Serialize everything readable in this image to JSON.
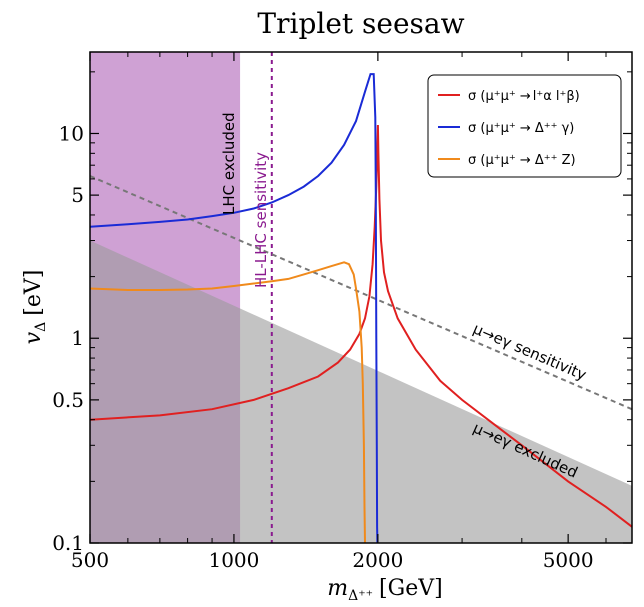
{
  "chart_data": {
    "type": "line",
    "title": "Triplet seesaw",
    "xlabel": "m",
    "xlabel_sub": "Δ⁺⁺",
    "xlabel_unit": "[GeV]",
    "ylabel": "v",
    "ylabel_sub": "Δ",
    "ylabel_unit": "[eV]",
    "xscale": "log",
    "yscale": "log",
    "xlim": [
      500,
      6800
    ],
    "ylim": [
      0.1,
      25
    ],
    "xticks": [
      500,
      1000,
      2000,
      5000
    ],
    "xtick_labels": [
      "500",
      "1000",
      "2000",
      "5000"
    ],
    "yticks": [
      0.1,
      0.5,
      1,
      5,
      10
    ],
    "ytick_labels": [
      "0.1",
      "0.5",
      "1",
      "5",
      "10"
    ],
    "legend_position": "top-right",
    "series": [
      {
        "name": "σ (μ⁺μ⁺ → l⁺α l⁺β)",
        "legend_text": "σ (μ⁺μ⁺ → ",
        "legend_sub_text": "l⁺α l⁺β)",
        "color": "#e02020",
        "x": [
          500,
          700,
          900,
          1100,
          1300,
          1500,
          1650,
          1750,
          1830,
          1880,
          1920,
          1950,
          1970,
          1985,
          1995,
          2000,
          2005,
          2015,
          2030,
          2060,
          2100,
          2200,
          2400,
          2700,
          3000,
          3500,
          4000,
          5000,
          6000,
          6800
        ],
        "y": [
          0.4,
          0.42,
          0.45,
          0.5,
          0.57,
          0.65,
          0.76,
          0.88,
          1.05,
          1.25,
          1.6,
          2.3,
          3.5,
          5.5,
          8.5,
          11,
          8.0,
          4.8,
          3.0,
          2.1,
          1.7,
          1.25,
          0.88,
          0.62,
          0.5,
          0.38,
          0.3,
          0.2,
          0.15,
          0.12
        ]
      },
      {
        "name": "σ (μ⁺μ⁺ → Δ⁺⁺ γ)",
        "legend_text": "σ (μ⁺μ⁺ → Δ⁺⁺ γ)",
        "color": "#1a2bd6",
        "x": [
          500,
          600,
          700,
          800,
          900,
          1000,
          1100,
          1200,
          1300,
          1400,
          1500,
          1600,
          1700,
          1800,
          1880,
          1930,
          1960,
          1975,
          1980,
          1985,
          1990,
          1993,
          1995
        ],
        "y": [
          3.5,
          3.6,
          3.7,
          3.8,
          3.95,
          4.1,
          4.3,
          4.6,
          5.0,
          5.5,
          6.2,
          7.2,
          8.8,
          11.5,
          16,
          19.5,
          19.5,
          12,
          5,
          1,
          0.3,
          0.12,
          0.1
        ]
      },
      {
        "name": "σ (μ⁺μ⁺ → Δ⁺⁺ Z)",
        "legend_text": "σ (μ⁺μ⁺ → Δ⁺⁺ Z)",
        "color": "#f08a1c",
        "x": [
          500,
          600,
          700,
          800,
          900,
          1000,
          1100,
          1200,
          1300,
          1400,
          1500,
          1600,
          1700,
          1740,
          1780,
          1800,
          1830,
          1850,
          1860,
          1870,
          1875,
          1880
        ],
        "y": [
          1.75,
          1.72,
          1.72,
          1.73,
          1.75,
          1.8,
          1.85,
          1.9,
          1.95,
          2.05,
          2.15,
          2.25,
          2.35,
          2.3,
          2.05,
          1.75,
          1.35,
          0.9,
          0.6,
          0.3,
          0.15,
          0.1
        ]
      }
    ],
    "regions": [
      {
        "name": "LHC excluded",
        "label": "LHC excluded",
        "color": "#b56fbd",
        "x_range": [
          500,
          1030
        ]
      },
      {
        "name": "μ→eγ excluded",
        "label": "μ→eγ excluded",
        "color": "#9b9b9b",
        "boundary_x": [
          500,
          6800
        ],
        "boundary_y": [
          3.0,
          0.19
        ]
      }
    ],
    "reference_lines": [
      {
        "name": "HL-LHC sensitivity",
        "label": "HL-LHC sensitivity",
        "orientation": "vertical",
        "x": 1200,
        "color": "#8a1a8f",
        "style": "dashed"
      },
      {
        "name": "μ→eγ sensitivity",
        "label": "μ→eγ sensitivity",
        "orientation": "diagonal",
        "x": [
          500,
          6800
        ],
        "y": [
          6.2,
          0.45
        ],
        "color": "#777777",
        "style": "dashed"
      }
    ]
  }
}
